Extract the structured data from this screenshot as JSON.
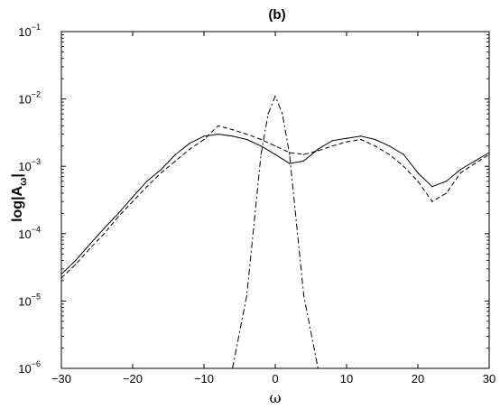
{
  "chart_data": {
    "type": "line",
    "title": "(b)",
    "xlabel": "ω",
    "ylabel": {
      "prefix": "log|A",
      "subscript": "ω",
      "suffix": "|"
    },
    "xlim": [
      -30,
      30
    ],
    "ylim": [
      1e-06,
      0.1
    ],
    "yscale": "log",
    "grid": false,
    "legend": "none",
    "x_ticks": [
      -30,
      -20,
      -10,
      0,
      10,
      20,
      30
    ],
    "x_tick_labels": [
      "−30",
      "−20",
      "−10",
      "0",
      "10",
      "20",
      "30"
    ],
    "y_ticks": [
      {
        "value": 1e-06,
        "base": "10",
        "exp": "−6"
      },
      {
        "value": 1e-05,
        "base": "10",
        "exp": "−5"
      },
      {
        "value": 0.0001,
        "base": "10",
        "exp": "−4"
      },
      {
        "value": 0.001,
        "base": "10",
        "exp": "−3"
      },
      {
        "value": 0.01,
        "base": "10",
        "exp": "−2"
      },
      {
        "value": 0.1,
        "base": "10",
        "exp": "−1"
      }
    ],
    "series": [
      {
        "style": "solid",
        "color": "#000000",
        "x": [
          -30,
          -28,
          -26,
          -24,
          -22,
          -20,
          -18,
          -16,
          -14,
          -12,
          -10,
          -8,
          -6,
          -4,
          -2,
          0,
          2,
          4,
          6,
          8,
          10,
          12,
          14,
          16,
          18,
          20,
          22,
          24,
          26,
          28,
          30
        ],
        "y": [
          2.5e-05,
          4e-05,
          7e-05,
          0.00012,
          0.0002,
          0.00035,
          0.0006,
          0.0009,
          0.0015,
          0.0022,
          0.0028,
          0.003,
          0.0028,
          0.0025,
          0.002,
          0.0015,
          0.0011,
          0.0012,
          0.0018,
          0.0024,
          0.0026,
          0.0028,
          0.0025,
          0.002,
          0.0015,
          0.0008,
          0.0005,
          0.0006,
          0.0009,
          0.0012,
          0.0016
        ]
      },
      {
        "style": "dashed",
        "color": "#000000",
        "x": [
          -30,
          -28,
          -26,
          -24,
          -22,
          -20,
          -18,
          -16,
          -14,
          -12,
          -10,
          -8,
          -6,
          -4,
          -2,
          0,
          2,
          4,
          6,
          8,
          10,
          12,
          14,
          16,
          18,
          20,
          22,
          24,
          26,
          28,
          30
        ],
        "y": [
          2.2e-05,
          3.5e-05,
          6e-05,
          0.0001,
          0.00018,
          0.0003,
          0.0005,
          0.0008,
          0.0012,
          0.0018,
          0.0025,
          0.004,
          0.0035,
          0.003,
          0.0025,
          0.002,
          0.0016,
          0.0015,
          0.0017,
          0.002,
          0.0023,
          0.0025,
          0.002,
          0.0015,
          0.001,
          0.0006,
          0.0003,
          0.0004,
          0.0008,
          0.0011,
          0.0015
        ]
      },
      {
        "style": "dashdot",
        "color": "#000000",
        "x": [
          -6,
          -4,
          -2,
          -1,
          0,
          1,
          2,
          4,
          6
        ],
        "y": [
          1e-06,
          1.2e-05,
          0.0015,
          0.006,
          0.011,
          0.006,
          0.0015,
          1.2e-05,
          1e-06
        ]
      }
    ]
  }
}
